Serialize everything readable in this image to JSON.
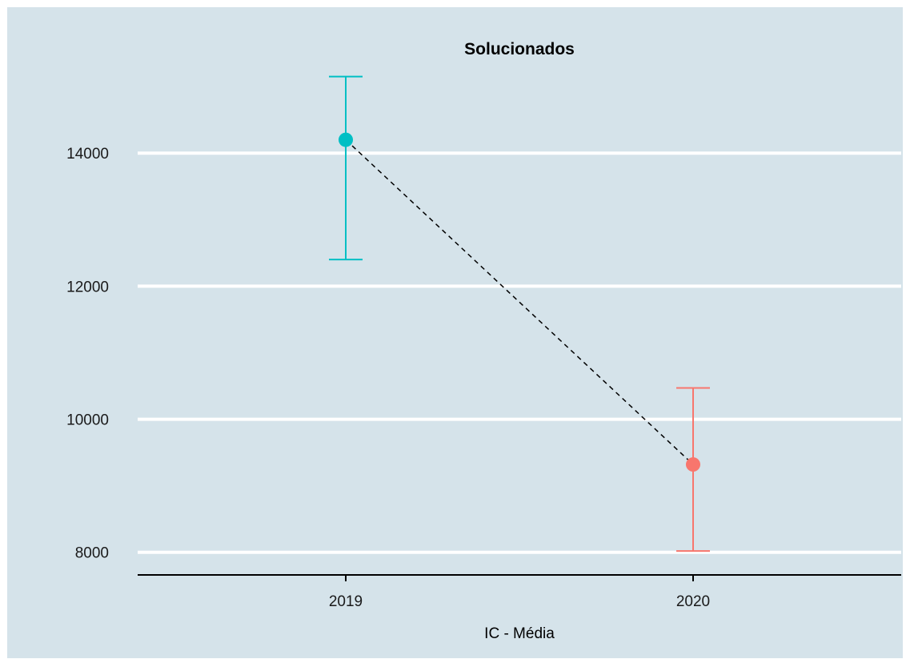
{
  "chart_data": {
    "type": "errorbar",
    "title": "Solucionados",
    "xlabel": "IC - Média",
    "ylabel": "",
    "categories": [
      "2019",
      "2020"
    ],
    "series": [
      {
        "category": "2019",
        "mean": 14200,
        "lower": 12400,
        "upper": 15150,
        "color": "#00BFC4"
      },
      {
        "category": "2020",
        "mean": 9320,
        "lower": 8020,
        "upper": 10470
      }
    ],
    "series_colors": [
      "#00BFC4",
      "#F8766D"
    ],
    "connector": {
      "style": "dashed",
      "color": "#000000"
    },
    "y_ticks": [
      8000,
      10000,
      12000,
      14000
    ],
    "ylim": [
      7660,
      15940
    ],
    "grid": {
      "major_y": true,
      "color": "#FFFFFF"
    },
    "background_color": "#D5E3EA",
    "legend": "none"
  }
}
